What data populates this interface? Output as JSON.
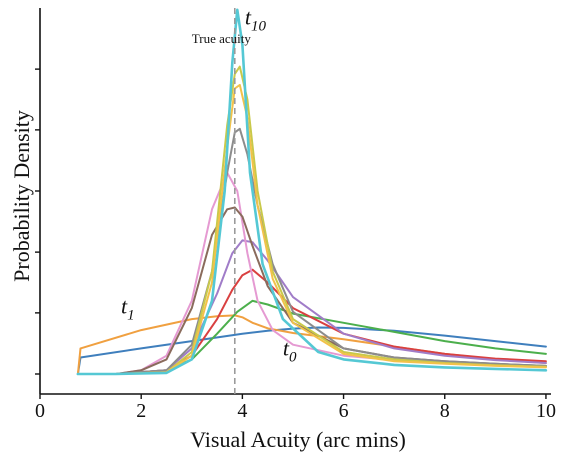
{
  "chart_data": {
    "type": "line",
    "title": "",
    "xlabel": "Visual Acuity (arc mins)",
    "ylabel": "Probability Density",
    "xlim": [
      0,
      10.1
    ],
    "ylim": [
      0,
      1.0
    ],
    "y_tick_labels_shown": false,
    "x_ticks": [
      0,
      2,
      4,
      6,
      8,
      10
    ],
    "x_tick_labels": [
      "0",
      "2",
      "4",
      "6",
      "8",
      "10"
    ],
    "y_ticks": [
      0,
      0.167,
      0.333,
      0.5,
      0.667,
      0.833
    ],
    "grid": false,
    "legend": "none",
    "true_acuity": 3.85,
    "annotations": [
      {
        "text": "True acuity",
        "x": 3.0,
        "y": 0.905
      },
      {
        "base": "t",
        "sub": "10",
        "x": 4.05,
        "y": 0.955,
        "target": "t10"
      },
      {
        "base": "t",
        "sub": "1",
        "x": 1.6,
        "y": 0.165,
        "target": "t1"
      },
      {
        "base": "t",
        "sub": "0",
        "x": 4.8,
        "y": 0.05,
        "target": "t0"
      }
    ],
    "series": [
      {
        "id": "t0",
        "color": "#3f7fbd",
        "x": [
          0.75,
          0.8,
          2,
          3,
          4,
          4.5,
          5,
          5.5,
          6,
          7,
          8,
          9,
          10
        ],
        "y": [
          0.0,
          0.045,
          0.07,
          0.09,
          0.11,
          0.118,
          0.124,
          0.127,
          0.126,
          0.118,
          0.105,
          0.09,
          0.075
        ]
      },
      {
        "id": "t1",
        "color": "#f0a040",
        "x": [
          0.75,
          0.8,
          2,
          3,
          3.5,
          3.85,
          4.0,
          4.2,
          4.5,
          5,
          6,
          7,
          8,
          9,
          10
        ],
        "y": [
          0.0,
          0.07,
          0.12,
          0.15,
          0.158,
          0.16,
          0.155,
          0.14,
          0.125,
          0.112,
          0.095,
          0.075,
          0.055,
          0.04,
          0.03
        ]
      },
      {
        "id": "t2",
        "color": "#4caf4c",
        "x": [
          0.75,
          1.5,
          2.5,
          3.0,
          3.5,
          3.9,
          4.2,
          4.5,
          5,
          6,
          7,
          8,
          9,
          10
        ],
        "y": [
          0.0,
          0.0,
          0.01,
          0.04,
          0.11,
          0.17,
          0.2,
          0.19,
          0.165,
          0.14,
          0.115,
          0.09,
          0.07,
          0.055
        ]
      },
      {
        "id": "t3",
        "color": "#d94040",
        "x": [
          0.75,
          1.5,
          2.5,
          3.0,
          3.5,
          3.8,
          4.0,
          4.2,
          4.5,
          5,
          6,
          7,
          8,
          9,
          10
        ],
        "y": [
          0.0,
          0.0,
          0.01,
          0.05,
          0.15,
          0.23,
          0.27,
          0.285,
          0.25,
          0.18,
          0.11,
          0.075,
          0.055,
          0.042,
          0.035
        ]
      },
      {
        "id": "t4",
        "color": "#a07cc8",
        "x": [
          0.75,
          1.5,
          2.5,
          3.0,
          3.5,
          3.8,
          4.0,
          4.2,
          4.5,
          5,
          6,
          7,
          8,
          9,
          10
        ],
        "y": [
          0.0,
          0.0,
          0.01,
          0.07,
          0.22,
          0.33,
          0.365,
          0.36,
          0.31,
          0.21,
          0.11,
          0.07,
          0.05,
          0.038,
          0.03
        ]
      },
      {
        "id": "t5",
        "color": "#e59ad2",
        "x": [
          0.75,
          1.5,
          2.0,
          2.5,
          3.0,
          3.4,
          3.7,
          3.9,
          4.1,
          4.3,
          4.6,
          5,
          6,
          7,
          8,
          9,
          10
        ],
        "y": [
          0.0,
          0.0,
          0.01,
          0.05,
          0.2,
          0.45,
          0.55,
          0.5,
          0.33,
          0.2,
          0.12,
          0.08,
          0.05,
          0.038,
          0.03,
          0.025,
          0.02
        ]
      },
      {
        "id": "t6",
        "color": "#8a6b5c",
        "x": [
          0.75,
          1.5,
          2.0,
          2.5,
          3.0,
          3.4,
          3.7,
          3.85,
          4.0,
          4.2,
          4.5,
          5,
          6,
          7,
          8,
          9,
          10
        ],
        "y": [
          0.0,
          0.0,
          0.01,
          0.04,
          0.18,
          0.38,
          0.45,
          0.455,
          0.43,
          0.35,
          0.24,
          0.14,
          0.07,
          0.045,
          0.035,
          0.028,
          0.022
        ]
      },
      {
        "id": "t7",
        "color": "#8c8c8c",
        "x": [
          0.75,
          1.5,
          2.5,
          3.0,
          3.4,
          3.7,
          3.85,
          3.95,
          4.1,
          4.3,
          4.6,
          5,
          6,
          7,
          8,
          9,
          10
        ],
        "y": [
          0.0,
          0.0,
          0.01,
          0.08,
          0.28,
          0.55,
          0.66,
          0.67,
          0.6,
          0.46,
          0.3,
          0.17,
          0.07,
          0.045,
          0.035,
          0.028,
          0.022
        ]
      },
      {
        "id": "t8",
        "color": "#c9c94a",
        "x": [
          0.75,
          1.5,
          2.5,
          3.0,
          3.4,
          3.7,
          3.85,
          3.95,
          4.1,
          4.3,
          4.6,
          5,
          6,
          7,
          8,
          9,
          10
        ],
        "y": [
          0.0,
          0.0,
          0.005,
          0.06,
          0.28,
          0.68,
          0.82,
          0.84,
          0.75,
          0.5,
          0.28,
          0.15,
          0.06,
          0.04,
          0.03,
          0.024,
          0.02
        ]
      },
      {
        "id": "t9",
        "color": "#f2c24a",
        "x": [
          0.75,
          1.5,
          2.5,
          3.0,
          3.4,
          3.7,
          3.85,
          3.95,
          4.1,
          4.3,
          4.6,
          5,
          6,
          7,
          8,
          9,
          10
        ],
        "y": [
          0.0,
          0.0,
          0.005,
          0.05,
          0.25,
          0.62,
          0.78,
          0.79,
          0.7,
          0.46,
          0.26,
          0.14,
          0.055,
          0.035,
          0.028,
          0.022,
          0.018
        ]
      },
      {
        "id": "t10",
        "color": "#55c8d4",
        "x": [
          0.75,
          1.5,
          2.5,
          3.0,
          3.4,
          3.65,
          3.8,
          3.9,
          4.0,
          4.15,
          4.4,
          4.8,
          5.5,
          6,
          7,
          8,
          9,
          10
        ],
        "y": [
          0.0,
          0.0,
          0.003,
          0.04,
          0.2,
          0.5,
          0.85,
          0.995,
          0.9,
          0.55,
          0.3,
          0.15,
          0.06,
          0.04,
          0.025,
          0.018,
          0.014,
          0.01
        ]
      }
    ]
  }
}
